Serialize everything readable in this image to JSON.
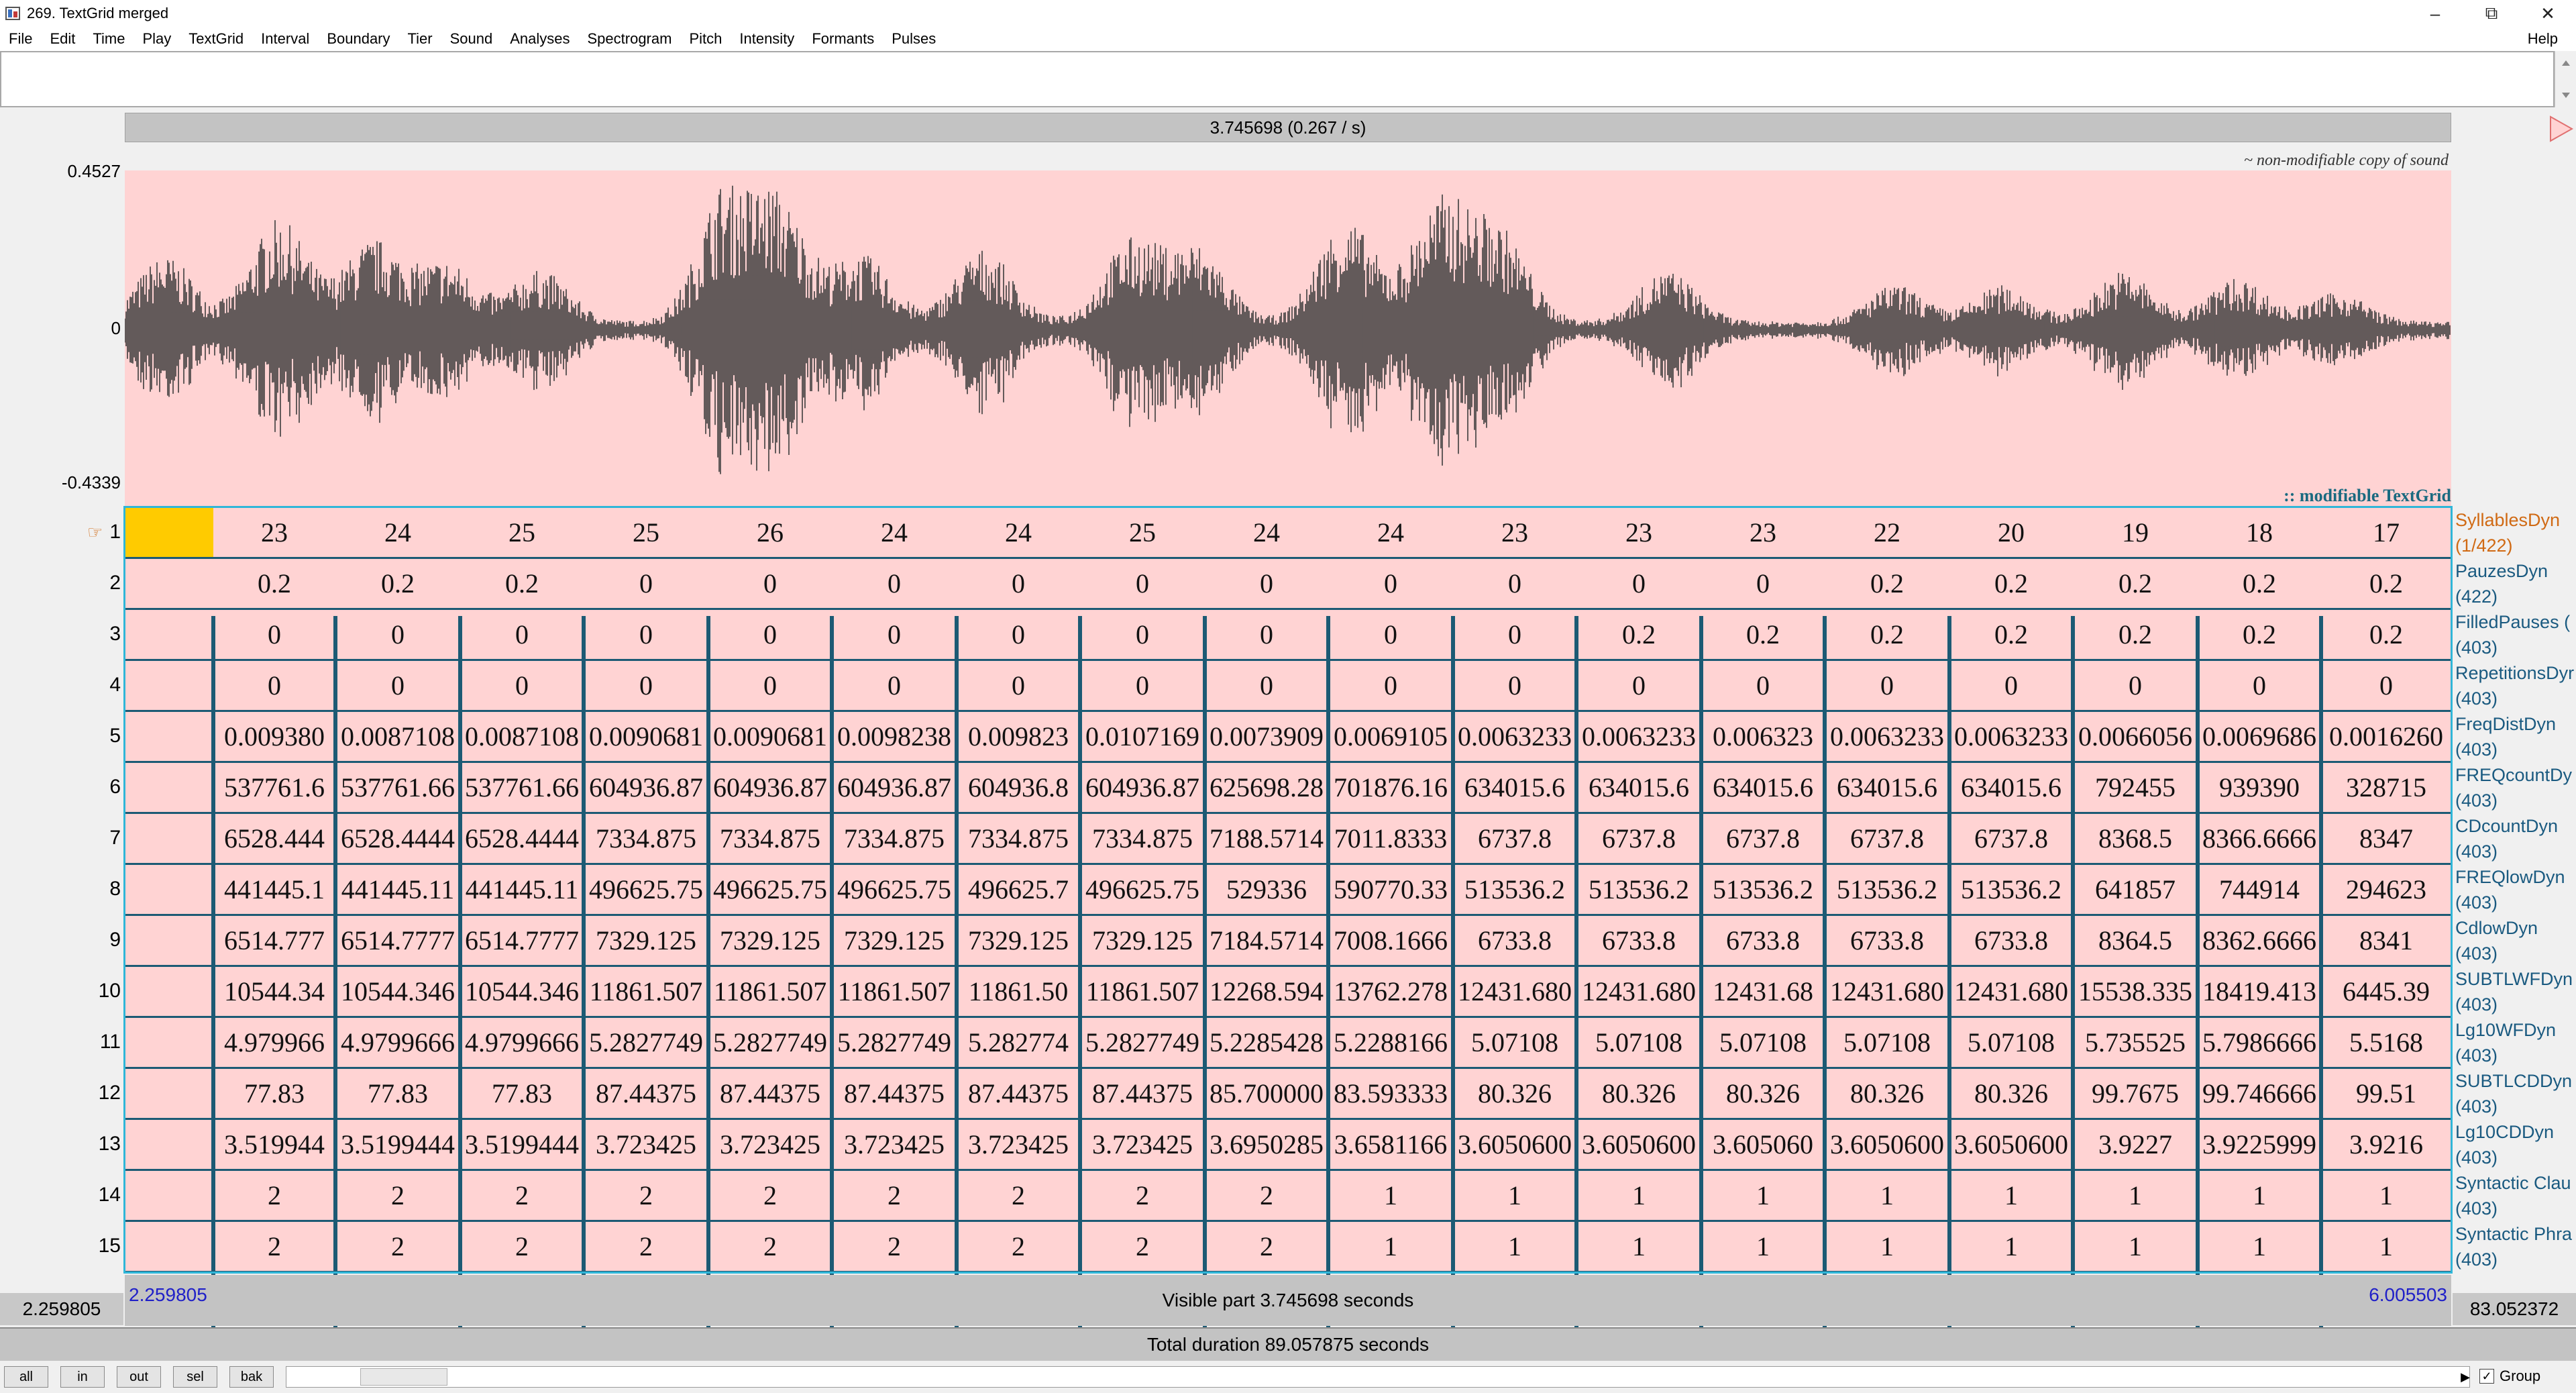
{
  "window": {
    "title": "269. TextGrid merged",
    "controls": {
      "minimize": "–",
      "maximize": "⧉",
      "close": "✕"
    }
  },
  "menu": {
    "items": [
      "File",
      "Edit",
      "Time",
      "Play",
      "TextGrid",
      "Interval",
      "Boundary",
      "Tier",
      "Sound",
      "Analyses",
      "Spectrogram",
      "Pitch",
      "Intensity",
      "Formants",
      "Pulses"
    ],
    "help": "Help"
  },
  "editor": {
    "header_duration": "3.745698 (0.267 / s)",
    "amplitude": {
      "max": "0.4527",
      "zero": "0",
      "min": "-0.4339"
    },
    "sound_caption": "~ non-modifiable copy of sound",
    "textgrid_caption": ":: modifiable TextGrid",
    "selected_tier_marker": "☞",
    "row_numbers": [
      "1",
      "2",
      "3",
      "4",
      "5",
      "6",
      "7",
      "8",
      "9",
      "10",
      "11",
      "12",
      "13",
      "14",
      "15"
    ],
    "tier_labels": [
      {
        "name": "SyllablesDyn",
        "count": "(1/422)"
      },
      {
        "name": "PauzesDyn",
        "count": "(422)"
      },
      {
        "name": "FilledPauses (",
        "count": "(403)"
      },
      {
        "name": "RepetitionsDyr",
        "count": "(403)"
      },
      {
        "name": "FreqDistDyn",
        "count": "(403)"
      },
      {
        "name": "FREQcountDy",
        "count": "(403)"
      },
      {
        "name": "CDcountDyn",
        "count": "(403)"
      },
      {
        "name": "FREQlowDyn",
        "count": "(403)"
      },
      {
        "name": "CdlowDyn",
        "count": "(403)"
      },
      {
        "name": "SUBTLWFDyn",
        "count": "(403)"
      },
      {
        "name": "Lg10WFDyn",
        "count": "(403)"
      },
      {
        "name": "SUBTLCDDyn",
        "count": "(403)"
      },
      {
        "name": "Lg10CDDyn",
        "count": "(403)"
      },
      {
        "name": "Syntactic Clau",
        "count": "(403)"
      },
      {
        "name": "Syntactic Phra",
        "count": "(403)"
      }
    ],
    "tiers": [
      [
        "",
        "23",
        "24",
        "25",
        "25",
        "26",
        "24",
        "24",
        "25",
        "24",
        "24",
        "23",
        "23",
        "23",
        "22",
        "20",
        "19",
        "18",
        "17"
      ],
      [
        "",
        "0.2",
        "0.2",
        "0.2",
        "0",
        "0",
        "0",
        "0",
        "0",
        "0",
        "0",
        "0",
        "0",
        "0",
        "0.2",
        "0.2",
        "0.2",
        "0.2",
        "0.2"
      ],
      [
        "",
        "0",
        "0",
        "0",
        "0",
        "0",
        "0",
        "0",
        "0",
        "0",
        "0",
        "0",
        "0.2",
        "0.2",
        "0.2",
        "0.2",
        "0.2",
        "0.2",
        "0.2"
      ],
      [
        "",
        "0",
        "0",
        "0",
        "0",
        "0",
        "0",
        "0",
        "0",
        "0",
        "0",
        "0",
        "0",
        "0",
        "0",
        "0",
        "0",
        "0",
        "0"
      ],
      [
        "",
        "0.009380",
        "0.0087108",
        "0.0087108",
        "0.0090681",
        "0.0090681",
        "0.0098238",
        "0.009823",
        "0.0107169",
        "0.0073909",
        "0.0069105",
        "0.0063233",
        "0.0063233",
        "0.006323",
        "0.0063233",
        "0.0063233",
        "0.0066056",
        "0.0069686",
        "0.0016260"
      ],
      [
        "",
        "537761.6",
        "537761.66",
        "537761.66",
        "604936.87",
        "604936.87",
        "604936.87",
        "604936.8",
        "604936.87",
        "625698.28",
        "701876.16",
        "634015.6",
        "634015.6",
        "634015.6",
        "634015.6",
        "634015.6",
        "792455",
        "939390",
        "328715"
      ],
      [
        "",
        "6528.444",
        "6528.4444",
        "6528.4444",
        "7334.875",
        "7334.875",
        "7334.875",
        "7334.875",
        "7334.875",
        "7188.5714",
        "7011.8333",
        "6737.8",
        "6737.8",
        "6737.8",
        "6737.8",
        "6737.8",
        "8368.5",
        "8366.6666",
        "8347"
      ],
      [
        "",
        "441445.1",
        "441445.11",
        "441445.11",
        "496625.75",
        "496625.75",
        "496625.75",
        "496625.7",
        "496625.75",
        "529336",
        "590770.33",
        "513536.2",
        "513536.2",
        "513536.2",
        "513536.2",
        "513536.2",
        "641857",
        "744914",
        "294623"
      ],
      [
        "",
        "6514.777",
        "6514.7777",
        "6514.7777",
        "7329.125",
        "7329.125",
        "7329.125",
        "7329.125",
        "7329.125",
        "7184.5714",
        "7008.1666",
        "6733.8",
        "6733.8",
        "6733.8",
        "6733.8",
        "6733.8",
        "8364.5",
        "8362.6666",
        "8341"
      ],
      [
        "",
        "10544.34",
        "10544.346",
        "10544.346",
        "11861.507",
        "11861.507",
        "11861.507",
        "11861.50",
        "11861.507",
        "12268.594",
        "13762.278",
        "12431.680",
        "12431.680",
        "12431.68",
        "12431.680",
        "12431.680",
        "15538.335",
        "18419.413",
        "6445.39"
      ],
      [
        "",
        "4.979966",
        "4.9799666",
        "4.9799666",
        "5.2827749",
        "5.2827749",
        "5.2827749",
        "5.282774",
        "5.2827749",
        "5.2285428",
        "5.2288166",
        "5.07108",
        "5.07108",
        "5.07108",
        "5.07108",
        "5.07108",
        "5.735525",
        "5.7986666",
        "5.5168"
      ],
      [
        "",
        "77.83",
        "77.83",
        "77.83",
        "87.44375",
        "87.44375",
        "87.44375",
        "87.44375",
        "87.44375",
        "85.700000",
        "83.593333",
        "80.326",
        "80.326",
        "80.326",
        "80.326",
        "80.326",
        "99.7675",
        "99.746666",
        "99.51"
      ],
      [
        "",
        "3.519944",
        "3.5199444",
        "3.5199444",
        "3.723425",
        "3.723425",
        "3.723425",
        "3.723425",
        "3.723425",
        "3.6950285",
        "3.6581166",
        "3.6050600",
        "3.6050600",
        "3.605060",
        "3.6050600",
        "3.6050600",
        "3.9227",
        "3.9225999",
        "3.9216"
      ],
      [
        "",
        "2",
        "2",
        "2",
        "2",
        "2",
        "2",
        "2",
        "2",
        "2",
        "1",
        "1",
        "1",
        "1",
        "1",
        "1",
        "1",
        "1",
        "1"
      ],
      [
        "",
        "2",
        "2",
        "2",
        "2",
        "2",
        "2",
        "2",
        "2",
        "2",
        "1",
        "1",
        "1",
        "1",
        "1",
        "1",
        "1",
        "1",
        "1"
      ]
    ]
  },
  "footer": {
    "left_time": "2.259805",
    "right_time": "83.052372",
    "visible_start": "2.259805",
    "visible_end": "6.005503",
    "visible_part": "Visible part 3.745698 seconds",
    "total_duration": "Total duration 89.057875 seconds"
  },
  "buttons": {
    "all": "all",
    "in": "in",
    "out": "out",
    "sel": "sel",
    "bak": "bak",
    "group": "Group",
    "group_checked": "✓"
  },
  "colors": {
    "sound_bg": "#ffd3d3",
    "waveform": "#3c3c3c",
    "selection": "#ffcb00",
    "boundary": "#1c5a74",
    "tier_label": "#1a5a80",
    "selected_tier_label": "#d06a14",
    "time_link": "#2020c8"
  }
}
